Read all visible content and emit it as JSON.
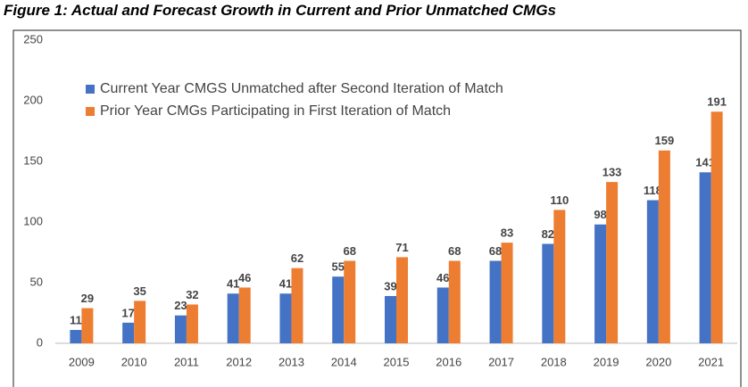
{
  "chart_data": {
    "type": "bar",
    "title": "Figure 1: Actual and Forecast Growth in Current and Prior Unmatched CMGs",
    "categories": [
      "2009",
      "2010",
      "2011",
      "2012",
      "2013",
      "2014",
      "2015",
      "2016",
      "2017",
      "2018",
      "2019",
      "2020",
      "2021"
    ],
    "series": [
      {
        "name": "Current Year CMGS Unmatched after Second Iteration of Match",
        "color": "#4472c4",
        "values": [
          11,
          17,
          23,
          41,
          41,
          55,
          39,
          46,
          68,
          82,
          98,
          118,
          141
        ]
      },
      {
        "name": "Prior Year CMGs Participating in First Iteration of Match",
        "color": "#ed7d31",
        "values": [
          29,
          35,
          32,
          46,
          62,
          68,
          71,
          68,
          83,
          110,
          133,
          159,
          191
        ]
      }
    ],
    "ylim": [
      0,
      250
    ],
    "yticks": [
      0,
      50,
      100,
      150,
      200,
      250
    ],
    "grid": false,
    "legend": "top-left"
  }
}
